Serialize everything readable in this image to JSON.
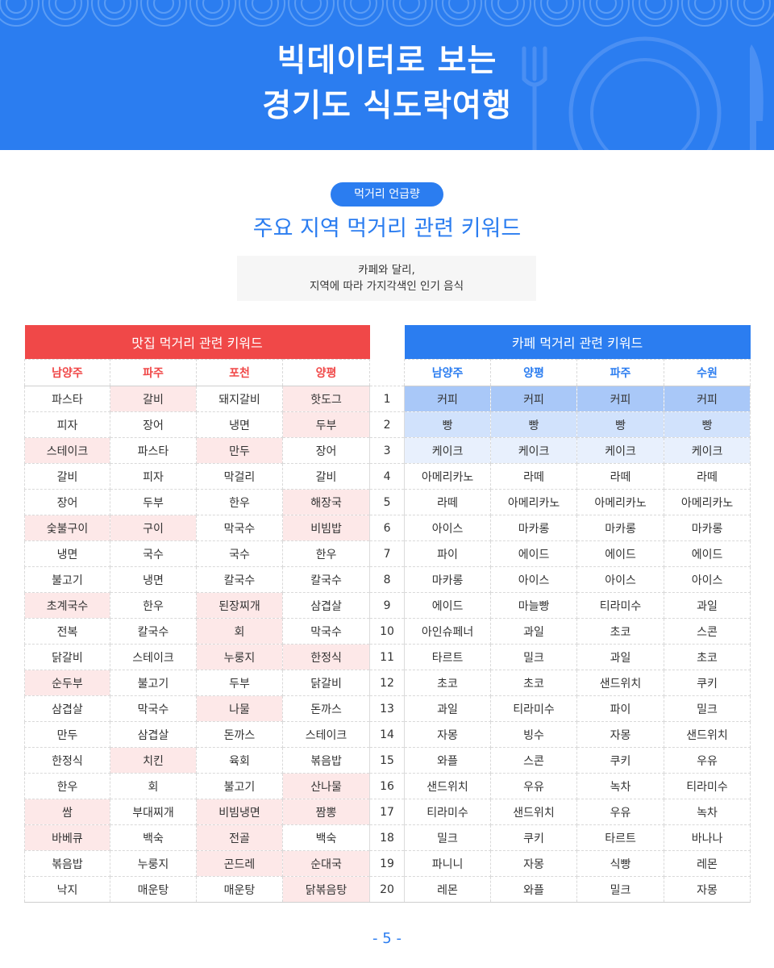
{
  "header": {
    "title_line1": "빅데이터로 보는",
    "title_line2": "경기도 식도락여행",
    "bg_color": "#2b7df0"
  },
  "section": {
    "badge": "먹거리 언급량",
    "title": "주요 지역 먹거리 관련 키워드",
    "note_line1": "카페와 달리,",
    "note_line2": "지역에 따라 가지각색인 인기 음식"
  },
  "restaurant": {
    "title": "맛집 먹거리 관련 키워드",
    "color": "#f04848",
    "regions": [
      "남양주",
      "파주",
      "포천",
      "양평"
    ],
    "rows": [
      [
        "파스타",
        "갈비",
        "돼지갈비",
        "핫도그"
      ],
      [
        "피자",
        "장어",
        "냉면",
        "두부"
      ],
      [
        "스테이크",
        "파스타",
        "만두",
        "장어"
      ],
      [
        "갈비",
        "피자",
        "막걸리",
        "갈비"
      ],
      [
        "장어",
        "두부",
        "한우",
        "해장국"
      ],
      [
        "숯불구이",
        "구이",
        "막국수",
        "비빔밥"
      ],
      [
        "냉면",
        "국수",
        "국수",
        "한우"
      ],
      [
        "불고기",
        "냉면",
        "칼국수",
        "칼국수"
      ],
      [
        "초계국수",
        "한우",
        "된장찌개",
        "삼겹살"
      ],
      [
        "전복",
        "칼국수",
        "회",
        "막국수"
      ],
      [
        "닭갈비",
        "스테이크",
        "누룽지",
        "한정식"
      ],
      [
        "순두부",
        "불고기",
        "두부",
        "닭갈비"
      ],
      [
        "삼겹살",
        "막국수",
        "나물",
        "돈까스"
      ],
      [
        "만두",
        "삼겹살",
        "돈까스",
        "스테이크"
      ],
      [
        "한정식",
        "치킨",
        "육회",
        "볶음밥"
      ],
      [
        "한우",
        "회",
        "불고기",
        "산나물"
      ],
      [
        "쌈",
        "부대찌개",
        "비빔냉면",
        "짬뽕"
      ],
      [
        "바베큐",
        "백숙",
        "전골",
        "백숙"
      ],
      [
        "볶음밥",
        "누룽지",
        "곤드레",
        "순대국"
      ],
      [
        "낙지",
        "매운탕",
        "매운탕",
        "닭볶음탕"
      ]
    ],
    "highlight": [
      [
        false,
        true,
        false,
        true
      ],
      [
        false,
        false,
        false,
        true
      ],
      [
        true,
        false,
        true,
        false
      ],
      [
        false,
        false,
        false,
        false
      ],
      [
        false,
        false,
        false,
        true
      ],
      [
        true,
        true,
        false,
        true
      ],
      [
        false,
        false,
        false,
        false
      ],
      [
        false,
        false,
        false,
        false
      ],
      [
        true,
        false,
        true,
        false
      ],
      [
        false,
        false,
        true,
        false
      ],
      [
        false,
        false,
        true,
        true
      ],
      [
        true,
        false,
        false,
        false
      ],
      [
        false,
        false,
        true,
        false
      ],
      [
        false,
        false,
        false,
        false
      ],
      [
        false,
        true,
        false,
        false
      ],
      [
        false,
        false,
        false,
        true
      ],
      [
        true,
        false,
        true,
        true
      ],
      [
        true,
        false,
        true,
        false
      ],
      [
        false,
        false,
        true,
        true
      ],
      [
        false,
        false,
        false,
        true
      ]
    ]
  },
  "ranks": [
    "1",
    "2",
    "3",
    "4",
    "5",
    "6",
    "7",
    "8",
    "9",
    "10",
    "11",
    "12",
    "13",
    "14",
    "15",
    "16",
    "17",
    "18",
    "19",
    "20"
  ],
  "cafe": {
    "title": "카페 먹거리 관련 키워드",
    "color": "#2b7df0",
    "regions": [
      "남양주",
      "양평",
      "파주",
      "수원"
    ],
    "rows": [
      [
        "커피",
        "커피",
        "커피",
        "커피"
      ],
      [
        "빵",
        "빵",
        "빵",
        "빵"
      ],
      [
        "케이크",
        "케이크",
        "케이크",
        "케이크"
      ],
      [
        "아메리카노",
        "라떼",
        "라떼",
        "라떼"
      ],
      [
        "라떼",
        "아메리카노",
        "아메리카노",
        "아메리카노"
      ],
      [
        "아이스",
        "마카롱",
        "마카롱",
        "마카롱"
      ],
      [
        "파이",
        "에이드",
        "에이드",
        "에이드"
      ],
      [
        "마카롱",
        "아이스",
        "아이스",
        "아이스"
      ],
      [
        "에이드",
        "마늘빵",
        "티라미수",
        "과일"
      ],
      [
        "아인슈페너",
        "과일",
        "초코",
        "스콘"
      ],
      [
        "타르트",
        "밀크",
        "과일",
        "초코"
      ],
      [
        "초코",
        "초코",
        "샌드위치",
        "쿠키"
      ],
      [
        "과일",
        "티라미수",
        "파이",
        "밀크"
      ],
      [
        "자몽",
        "빙수",
        "자몽",
        "샌드위치"
      ],
      [
        "와플",
        "스콘",
        "쿠키",
        "우유"
      ],
      [
        "샌드위치",
        "우유",
        "녹차",
        "티라미수"
      ],
      [
        "티라미수",
        "샌드위치",
        "우유",
        "녹차"
      ],
      [
        "밀크",
        "쿠키",
        "타르트",
        "바나나"
      ],
      [
        "파니니",
        "자몽",
        "식빵",
        "레몬"
      ],
      [
        "레몬",
        "와플",
        "밀크",
        "자몽"
      ]
    ],
    "row_shades": [
      "#a9c8f8",
      "#d1e2fc",
      "#e8f0fd"
    ]
  },
  "footer": {
    "page": "- 5 -"
  }
}
